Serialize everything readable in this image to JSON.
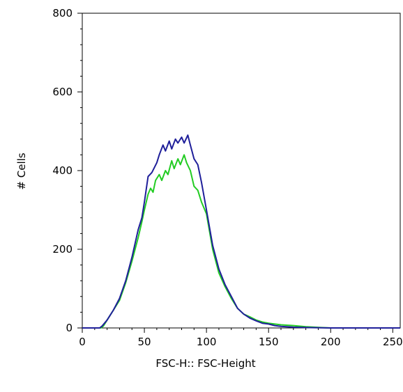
{
  "chart_data": {
    "type": "line",
    "title": "",
    "xlabel": "FSC-H:: FSC-Height",
    "ylabel": "# Cells",
    "xlim": [
      0,
      256
    ],
    "ylim": [
      0,
      800
    ],
    "x_ticks": [
      0,
      50,
      100,
      150,
      200,
      250
    ],
    "y_ticks": [
      0,
      200,
      400,
      600,
      800
    ],
    "grid": false,
    "legend": "none",
    "series": [
      {
        "color": "#1f1f9a",
        "x": [
          0,
          14,
          16,
          20,
          25,
          30,
          35,
          40,
          45,
          48,
          50,
          53,
          56,
          60,
          62,
          65,
          67,
          70,
          72,
          75,
          77,
          80,
          82,
          85,
          87,
          90,
          93,
          96,
          100,
          105,
          110,
          115,
          120,
          125,
          130,
          135,
          140,
          145,
          150,
          155,
          160,
          170,
          180,
          200,
          256
        ],
        "y": [
          0,
          0,
          5,
          20,
          45,
          75,
          120,
          180,
          250,
          280,
          320,
          385,
          395,
          420,
          440,
          465,
          450,
          475,
          455,
          480,
          470,
          485,
          470,
          490,
          465,
          430,
          415,
          370,
          300,
          210,
          150,
          110,
          80,
          50,
          35,
          25,
          18,
          12,
          10,
          6,
          4,
          2,
          1,
          0,
          0
        ]
      },
      {
        "color": "#22cc22",
        "x": [
          0,
          15,
          17,
          20,
          25,
          30,
          35,
          40,
          45,
          48,
          50,
          53,
          55,
          57,
          59,
          62,
          64,
          67,
          69,
          72,
          74,
          77,
          79,
          82,
          84,
          87,
          90,
          93,
          96,
          100,
          105,
          110,
          115,
          120,
          125,
          130,
          135,
          140,
          145,
          150,
          160,
          170,
          180,
          192,
          200,
          256
        ],
        "y": [
          0,
          0,
          5,
          20,
          45,
          70,
          115,
          170,
          230,
          270,
          300,
          340,
          355,
          345,
          375,
          390,
          375,
          400,
          390,
          425,
          405,
          430,
          415,
          440,
          420,
          400,
          360,
          350,
          320,
          290,
          200,
          140,
          105,
          75,
          50,
          35,
          28,
          20,
          15,
          12,
          8,
          6,
          3,
          1,
          0,
          0
        ]
      }
    ]
  }
}
